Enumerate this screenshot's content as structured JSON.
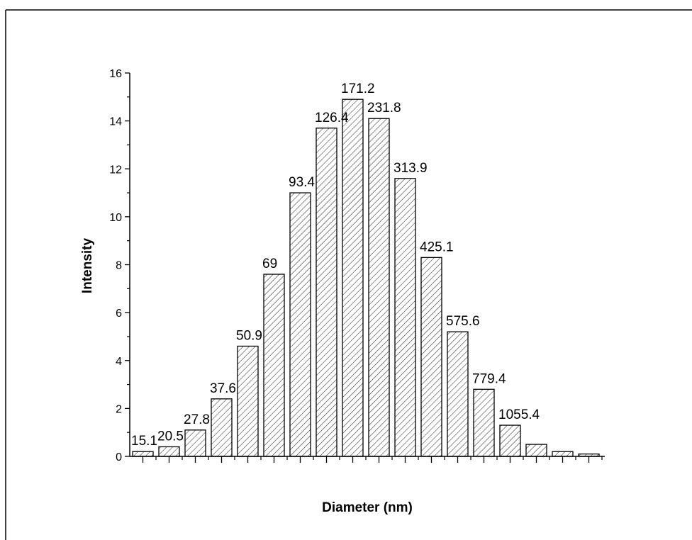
{
  "chart_data": {
    "type": "bar",
    "xlabel": "Diameter (nm)",
    "ylabel": "Intensity",
    "ylim": [
      0,
      16
    ],
    "y_ticks": [
      0,
      2,
      4,
      6,
      8,
      10,
      12,
      14,
      16
    ],
    "grid": false,
    "bar_pattern": "diagonal-hatch",
    "labels": [
      "15.1",
      "20.5",
      "27.8",
      "37.6",
      "50.9",
      "69",
      "93.4",
      "126.4",
      "171.2",
      "231.8",
      "313.9",
      "425.1",
      "575.6",
      "779.4",
      "1055.4",
      "",
      "",
      ""
    ],
    "values": [
      0.2,
      0.4,
      1.1,
      2.4,
      4.6,
      7.6,
      11.0,
      13.7,
      14.9,
      14.1,
      11.6,
      8.3,
      5.2,
      2.8,
      1.3,
      0.5,
      0.2,
      0.1
    ]
  },
  "colors": {
    "axis": "#000000",
    "bar_fill": "#ffffff",
    "hatch": "#000000"
  }
}
